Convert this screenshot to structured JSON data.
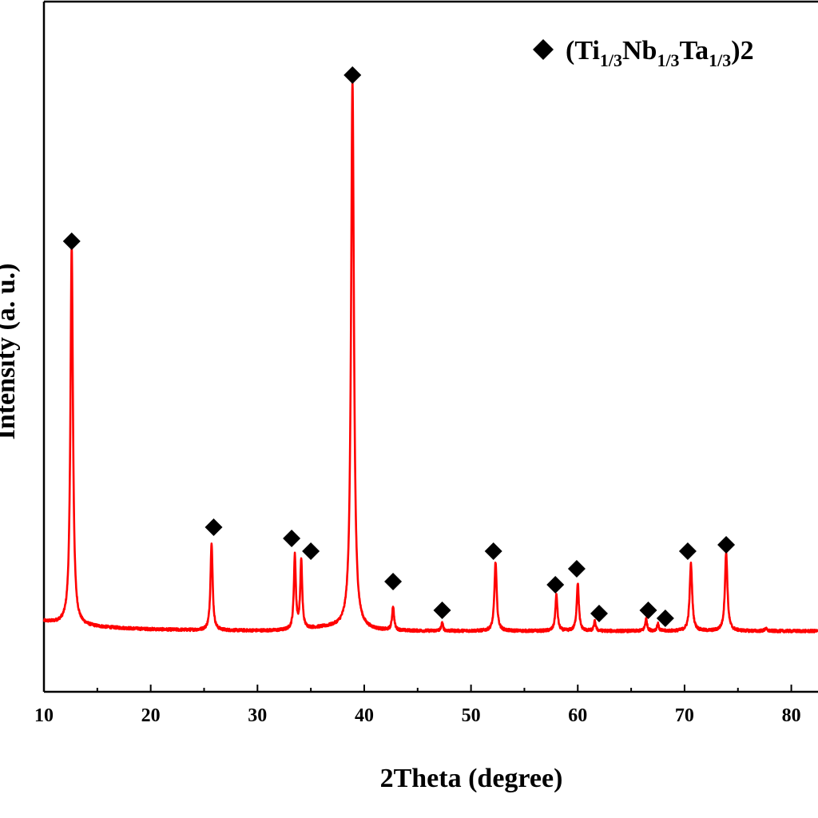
{
  "chart_data": {
    "type": "line",
    "xlabel": "2Theta (degree)",
    "ylabel": "Intensity (a. u.)",
    "xlim": [
      10,
      82.5
    ],
    "xticks": [
      10,
      20,
      30,
      40,
      50,
      60,
      70,
      80
    ],
    "y_ticks_shown": false,
    "line_color": "#ff0000",
    "marker_color": "#000000",
    "baseline": 1.0,
    "noise": 0.35,
    "peaks": [
      {
        "x": 12.6,
        "h": 47.4,
        "w": 0.14
      },
      {
        "x": 25.7,
        "h": 11.0,
        "w": 0.12
      },
      {
        "x": 33.5,
        "h": 9.2,
        "w": 0.11
      },
      {
        "x": 34.1,
        "h": 8.5,
        "w": 0.11
      },
      {
        "x": 38.9,
        "h": 68.5,
        "w": 0.16
      },
      {
        "x": 42.7,
        "h": 3.0,
        "w": 0.11
      },
      {
        "x": 47.3,
        "h": 1.0,
        "w": 0.1
      },
      {
        "x": 52.3,
        "h": 8.6,
        "w": 0.13
      },
      {
        "x": 58.0,
        "h": 4.5,
        "w": 0.12
      },
      {
        "x": 60.0,
        "h": 6.0,
        "w": 0.12
      },
      {
        "x": 61.6,
        "h": 1.2,
        "w": 0.1
      },
      {
        "x": 66.4,
        "h": 1.5,
        "w": 0.11
      },
      {
        "x": 67.5,
        "h": 0.9,
        "w": 0.1
      },
      {
        "x": 70.6,
        "h": 8.4,
        "w": 0.14
      },
      {
        "x": 73.9,
        "h": 9.8,
        "w": 0.14
      },
      {
        "x": 77.6,
        "h": 0.3,
        "w": 0.12
      }
    ],
    "markers": [
      {
        "x": 12.6,
        "y": 49.8
      },
      {
        "x": 25.9,
        "y": 14.0
      },
      {
        "x": 33.2,
        "y": 12.6
      },
      {
        "x": 35.0,
        "y": 11.0
      },
      {
        "x": 38.9,
        "y": 70.6
      },
      {
        "x": 42.7,
        "y": 7.2
      },
      {
        "x": 47.3,
        "y": 3.6
      },
      {
        "x": 52.1,
        "y": 11.0
      },
      {
        "x": 57.9,
        "y": 6.8
      },
      {
        "x": 59.9,
        "y": 8.8
      },
      {
        "x": 62.0,
        "y": 3.2
      },
      {
        "x": 66.6,
        "y": 3.6
      },
      {
        "x": 68.2,
        "y": 2.6
      },
      {
        "x": 70.3,
        "y": 11.0
      },
      {
        "x": 73.9,
        "y": 11.8
      }
    ],
    "legend": {
      "marker": "diamond",
      "parts": [
        {
          "text": "(Ti",
          "sub": false
        },
        {
          "text": "1/3",
          "sub": true
        },
        {
          "text": "Nb",
          "sub": false
        },
        {
          "text": "1/3",
          "sub": true
        },
        {
          "text": "Ta",
          "sub": false
        },
        {
          "text": "1/3",
          "sub": true
        },
        {
          "text": ")2",
          "sub": false
        }
      ],
      "placement": "top-right"
    }
  }
}
